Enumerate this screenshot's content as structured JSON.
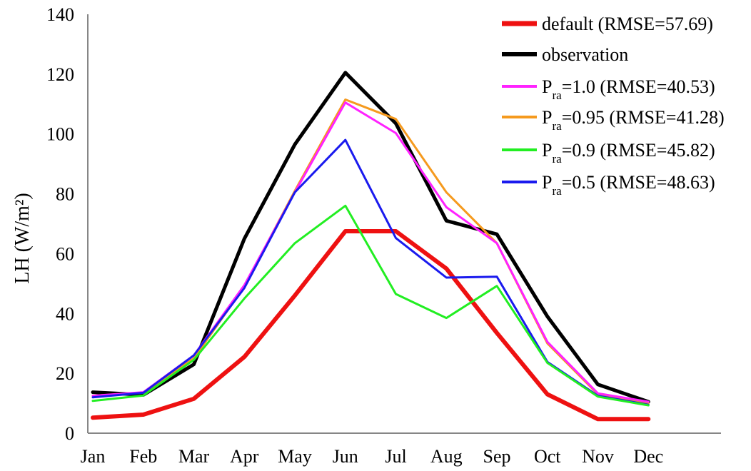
{
  "chart_data": {
    "type": "line",
    "title": "",
    "ylabel": "LH (W/m²)",
    "xlabel": "",
    "categories": [
      "Jan",
      "Feb",
      "Mar",
      "Apr",
      "May",
      "Jun",
      "Jul",
      "Aug",
      "Sep",
      "Oct",
      "Nov",
      "Dec"
    ],
    "ylim": [
      0,
      140
    ],
    "yticks": [
      0,
      20,
      40,
      60,
      80,
      100,
      120,
      140
    ],
    "legend_position": "top-right",
    "series": [
      {
        "name": "default (RMSE=57.69)",
        "color": "#ee1111",
        "values": [
          5.2,
          6.2,
          11.5,
          25.5,
          46,
          67.5,
          67.5,
          55,
          33.5,
          13,
          4.7,
          4.7
        ]
      },
      {
        "name": "observation",
        "color": "#000000",
        "values": [
          13.7,
          12.8,
          23,
          65,
          96.5,
          120.5,
          103.5,
          71,
          66.5,
          39,
          16.3,
          10.5
        ]
      },
      {
        "name_prefix": "P",
        "name_sub": "ra",
        "name_rest": "=1.0 (RMSE=40.53)",
        "color": "#ff22ff",
        "values": [
          12.5,
          13.7,
          26,
          49.5,
          80.5,
          110.5,
          100.3,
          75.5,
          63.5,
          30.5,
          13.3,
          10.5
        ]
      },
      {
        "name_prefix": "P",
        "name_sub": "ra",
        "name_rest": "=0.95 (RMSE=41.28)",
        "color": "#f59a1e",
        "values": [
          12.5,
          13.5,
          25,
          49,
          81,
          111.5,
          105,
          80.5,
          63.5,
          30,
          13,
          10
        ]
      },
      {
        "name_prefix": "P",
        "name_sub": "ra",
        "name_rest": "=0.9 (RMSE=45.82)",
        "color": "#22ee22",
        "values": [
          10.8,
          12.6,
          24.5,
          45,
          63.5,
          76,
          46.5,
          38.5,
          49.2,
          23.5,
          12.2,
          9.3
        ]
      },
      {
        "name_prefix": "P",
        "name_sub": "ra",
        "name_rest": "=0.5 (RMSE=48.63)",
        "color": "#1a1aee",
        "values": [
          12,
          13.5,
          26,
          48.5,
          80.5,
          98,
          65.2,
          52,
          52.3,
          23.8,
          12.5,
          9.5
        ]
      }
    ]
  }
}
